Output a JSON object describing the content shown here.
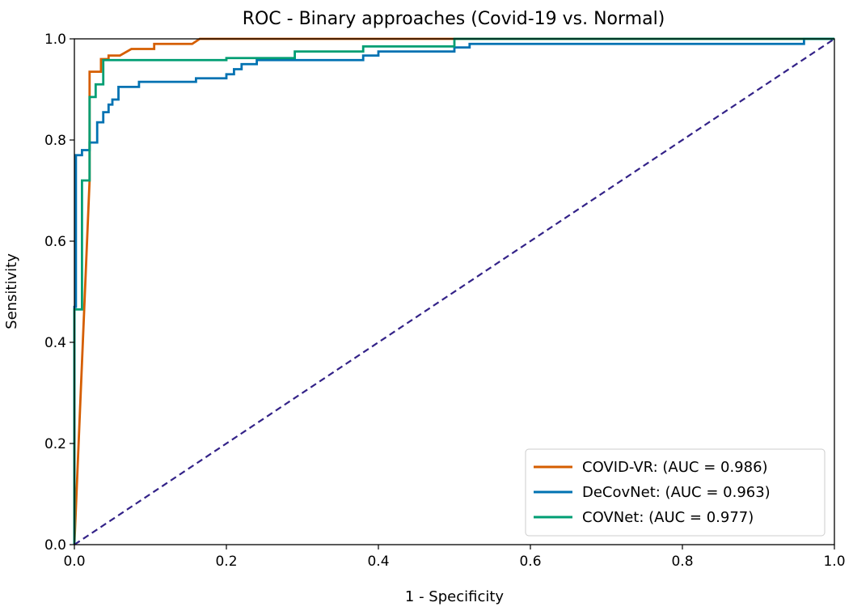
{
  "chart_data": {
    "type": "line",
    "title": "ROC - Binary approaches (Covid-19 vs. Normal)",
    "xlabel": "1 - Specificity",
    "ylabel": "Sensitivity",
    "xlim": [
      0.0,
      1.0
    ],
    "ylim": [
      0.0,
      1.0
    ],
    "xticks": [
      "0.0",
      "0.2",
      "0.4",
      "0.6",
      "0.8",
      "1.0"
    ],
    "yticks": [
      "0.0",
      "0.2",
      "0.4",
      "0.6",
      "0.8",
      "1.0"
    ],
    "grid": false,
    "legend_position": "bottom-right",
    "series": [
      {
        "name": "COVID-VR: (AUC = 0.986)",
        "color": "#d55e00",
        "style": "solid",
        "points": [
          [
            0.0,
            0.0
          ],
          [
            0.02,
            0.72
          ],
          [
            0.02,
            0.935
          ],
          [
            0.035,
            0.935
          ],
          [
            0.035,
            0.96
          ],
          [
            0.045,
            0.96
          ],
          [
            0.045,
            0.967
          ],
          [
            0.06,
            0.967
          ],
          [
            0.075,
            0.98
          ],
          [
            0.105,
            0.98
          ],
          [
            0.105,
            0.99
          ],
          [
            0.155,
            0.99
          ],
          [
            0.165,
            1.0
          ],
          [
            0.51,
            1.0
          ],
          [
            1.0,
            1.0
          ]
        ]
      },
      {
        "name": "DeCovNet: (AUC = 0.963)",
        "color": "#0072b2",
        "style": "solid",
        "points": [
          [
            0.0,
            0.0
          ],
          [
            0.0,
            0.47
          ],
          [
            0.002,
            0.47
          ],
          [
            0.002,
            0.77
          ],
          [
            0.01,
            0.77
          ],
          [
            0.01,
            0.78
          ],
          [
            0.02,
            0.78
          ],
          [
            0.02,
            0.795
          ],
          [
            0.03,
            0.795
          ],
          [
            0.03,
            0.835
          ],
          [
            0.038,
            0.835
          ],
          [
            0.038,
            0.855
          ],
          [
            0.045,
            0.855
          ],
          [
            0.045,
            0.87
          ],
          [
            0.05,
            0.87
          ],
          [
            0.05,
            0.88
          ],
          [
            0.058,
            0.88
          ],
          [
            0.058,
            0.905
          ],
          [
            0.085,
            0.905
          ],
          [
            0.085,
            0.915
          ],
          [
            0.16,
            0.915
          ],
          [
            0.16,
            0.922
          ],
          [
            0.2,
            0.922
          ],
          [
            0.2,
            0.93
          ],
          [
            0.21,
            0.93
          ],
          [
            0.21,
            0.94
          ],
          [
            0.22,
            0.94
          ],
          [
            0.22,
            0.95
          ],
          [
            0.24,
            0.95
          ],
          [
            0.24,
            0.958
          ],
          [
            0.38,
            0.958
          ],
          [
            0.38,
            0.967
          ],
          [
            0.4,
            0.967
          ],
          [
            0.4,
            0.975
          ],
          [
            0.5,
            0.975
          ],
          [
            0.5,
            0.983
          ],
          [
            0.52,
            0.983
          ],
          [
            0.52,
            0.99
          ],
          [
            0.96,
            0.99
          ],
          [
            0.96,
            1.0
          ],
          [
            1.0,
            1.0
          ]
        ]
      },
      {
        "name": "COVNet: (AUC = 0.977)",
        "color": "#009e73",
        "style": "solid",
        "points": [
          [
            0.0,
            0.0
          ],
          [
            0.0,
            0.465
          ],
          [
            0.01,
            0.465
          ],
          [
            0.01,
            0.72
          ],
          [
            0.02,
            0.72
          ],
          [
            0.02,
            0.885
          ],
          [
            0.028,
            0.885
          ],
          [
            0.028,
            0.91
          ],
          [
            0.038,
            0.91
          ],
          [
            0.038,
            0.958
          ],
          [
            0.2,
            0.958
          ],
          [
            0.2,
            0.962
          ],
          [
            0.29,
            0.962
          ],
          [
            0.29,
            0.975
          ],
          [
            0.38,
            0.975
          ],
          [
            0.38,
            0.985
          ],
          [
            0.5,
            0.985
          ],
          [
            0.5,
            1.0
          ],
          [
            1.0,
            1.0
          ]
        ]
      },
      {
        "name": "",
        "color": "#332288",
        "style": "dashed",
        "legend": false,
        "points": [
          [
            0.0,
            0.0
          ],
          [
            1.0,
            1.0
          ]
        ]
      }
    ]
  }
}
